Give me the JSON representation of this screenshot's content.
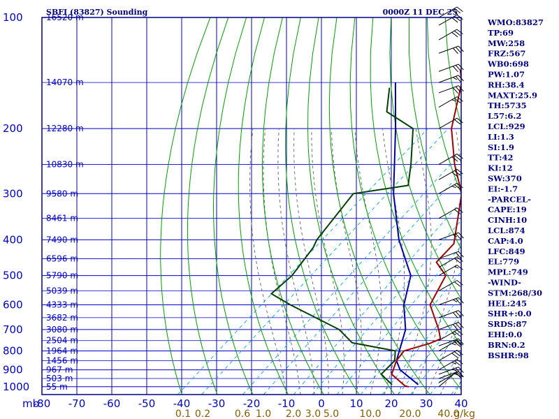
{
  "header": {
    "station_title": "SBFI (83827) Sounding",
    "time_label": "0000Z 11 DEC 25"
  },
  "indices": [
    "WMO:83827",
    "TP:69",
    "MW:258",
    "FRZ:567",
    "WB0:698",
    "PW:1.07",
    "RH:38.4",
    "MAXT:25.9",
    "TH:5735",
    "L57:6.2",
    "LCL:929",
    "LI:1.3",
    "SI:1.9",
    "TT:42",
    "KI:12",
    "SW:370",
    "EI:-1.7",
    "-PARCEL-",
    "CAPE:19",
    "CINH:10",
    "LCL:874",
    "CAP:4.0",
    "LFC:849",
    "EL:779",
    "MPL:749",
    "-WIND-",
    "STM:268/30",
    "HEL:245",
    "SHR+:0.0",
    "SRDS:87",
    "EHI:0.0",
    "BRN:0.2",
    "BSHR:98"
  ],
  "colors": {
    "frame": "#000080",
    "isobar": "#0000c8",
    "dry_adiabat": "#00a000",
    "moist_adiabat": "#606060",
    "mixing_ratio": "#00a0ff",
    "temperature": "#a00000",
    "dewpoint": "#004000",
    "parcel": "#0000a0"
  },
  "chart_data": {
    "type": "skew-t",
    "title": "",
    "xlabel": "",
    "ylabel": "mb",
    "pressure_unit_label": "mb",
    "mixing_unit_label": "g/kg",
    "pressure_ticks": [
      100,
      200,
      300,
      400,
      500,
      600,
      700,
      800,
      900,
      1000
    ],
    "temperature_ticks": [
      -80,
      -70,
      -60,
      -50,
      -40,
      -30,
      -20,
      -10,
      0,
      10,
      20,
      30,
      40
    ],
    "mixing_ratio_ticks": [
      "0.1",
      "0.2",
      "0.6",
      "1.0",
      "2.0",
      "3.0",
      "5.0",
      "10.0",
      "20.0",
      "40.0"
    ],
    "height_labels": [
      {
        "p": 100,
        "label": "16520 m"
      },
      {
        "p": 150,
        "label": "14070 m"
      },
      {
        "p": 200,
        "label": "12280 m"
      },
      {
        "p": 250,
        "label": "10830 m"
      },
      {
        "p": 300,
        "label": "9580 m"
      },
      {
        "p": 350,
        "label": "8461 m"
      },
      {
        "p": 400,
        "label": "7490 m"
      },
      {
        "p": 450,
        "label": "6596 m"
      },
      {
        "p": 500,
        "label": "5790 m"
      },
      {
        "p": 550,
        "label": "5039 m"
      },
      {
        "p": 600,
        "label": "4333 m"
      },
      {
        "p": 650,
        "label": "3682 m"
      },
      {
        "p": 700,
        "label": "3080 m"
      },
      {
        "p": 750,
        "label": "2504 m"
      },
      {
        "p": 800,
        "label": "1964 m"
      },
      {
        "p": 850,
        "label": "1456 m"
      },
      {
        "p": 900,
        "label": "967 m"
      },
      {
        "p": 950,
        "label": "503 m"
      },
      {
        "p": 1000,
        "label": "55 m"
      }
    ],
    "temperature_profile": [
      {
        "p": 1001,
        "t": 22.5
      },
      {
        "p": 994,
        "t": 21.0
      },
      {
        "p": 925,
        "t": 13.5
      },
      {
        "p": 850,
        "t": 10.5
      },
      {
        "p": 800,
        "t": 9.5
      },
      {
        "p": 762,
        "t": 14.5
      },
      {
        "p": 742,
        "t": 16.0
      },
      {
        "p": 700,
        "t": 12.5
      },
      {
        "p": 600,
        "t": 2.0
      },
      {
        "p": 500,
        "t": -3.0
      },
      {
        "p": 460,
        "t": -10.0
      },
      {
        "p": 410,
        "t": -11.0
      },
      {
        "p": 300,
        "t": -25.0
      },
      {
        "p": 250,
        "t": -36.5
      },
      {
        "p": 200,
        "t": -49.0
      },
      {
        "p": 150,
        "t": -61.0
      },
      {
        "p": 140,
        "t": -65.0
      },
      {
        "p": 125,
        "t": -68.5
      },
      {
        "p": 100,
        "t": -68.5
      }
    ],
    "dewpoint_profile": [
      {
        "p": 987,
        "t": 17.0
      },
      {
        "p": 925,
        "t": 10.5
      },
      {
        "p": 850,
        "t": 10.0
      },
      {
        "p": 800,
        "t": 7.0
      },
      {
        "p": 760,
        "t": -8.0
      },
      {
        "p": 700,
        "t": -16.0
      },
      {
        "p": 600,
        "t": -38.0
      },
      {
        "p": 560,
        "t": -47.0
      },
      {
        "p": 500,
        "t": -47.0
      },
      {
        "p": 420,
        "t": -50.0
      },
      {
        "p": 400,
        "t": -51.5
      },
      {
        "p": 300,
        "t": -56.0
      },
      {
        "p": 285,
        "t": -43.0
      },
      {
        "p": 250,
        "t": -49.0
      },
      {
        "p": 200,
        "t": -60.0
      },
      {
        "p": 180,
        "t": -73.0
      },
      {
        "p": 155,
        "t": -80.0
      }
    ],
    "parcel_profile": [
      {
        "p": 987,
        "t": 24.5
      },
      {
        "p": 900,
        "t": 14.5
      },
      {
        "p": 850,
        "t": 10.5
      },
      {
        "p": 700,
        "t": 3.0
      },
      {
        "p": 600,
        "t": -5.5
      },
      {
        "p": 500,
        "t": -13.0
      },
      {
        "p": 400,
        "t": -28.0
      },
      {
        "p": 300,
        "t": -44.5
      },
      {
        "p": 200,
        "t": -65.0
      },
      {
        "p": 150,
        "t": -80.0
      }
    ],
    "wind_barbs": [
      {
        "p": 1000,
        "dir": 50,
        "spd": 10
      },
      {
        "p": 975,
        "dir": 60,
        "spd": 15
      },
      {
        "p": 950,
        "dir": 70,
        "spd": 20
      },
      {
        "p": 925,
        "dir": 70,
        "spd": 25
      },
      {
        "p": 900,
        "dir": 60,
        "spd": 25
      },
      {
        "p": 850,
        "dir": 60,
        "spd": 30
      },
      {
        "p": 800,
        "dir": 60,
        "spd": 25
      },
      {
        "p": 775,
        "dir": 70,
        "spd": 25
      },
      {
        "p": 750,
        "dir": 60,
        "spd": 25
      },
      {
        "p": 700,
        "dir": 70,
        "spd": 30
      },
      {
        "p": 650,
        "dir": 70,
        "spd": 30
      },
      {
        "p": 600,
        "dir": 70,
        "spd": 25
      },
      {
        "p": 550,
        "dir": 60,
        "spd": 20
      },
      {
        "p": 500,
        "dir": 60,
        "spd": 15
      },
      {
        "p": 475,
        "dir": 60,
        "spd": 20
      },
      {
        "p": 450,
        "dir": 70,
        "spd": 20
      },
      {
        "p": 400,
        "dir": 70,
        "spd": 25
      },
      {
        "p": 350,
        "dir": 60,
        "spd": 20
      },
      {
        "p": 300,
        "dir": 60,
        "spd": 25
      },
      {
        "p": 275,
        "dir": 60,
        "spd": 30
      },
      {
        "p": 250,
        "dir": 60,
        "spd": 30
      },
      {
        "p": 200,
        "dir": 60,
        "spd": 20
      },
      {
        "p": 175,
        "dir": 60,
        "spd": 25
      },
      {
        "p": 160,
        "dir": 70,
        "spd": 30
      },
      {
        "p": 150,
        "dir": 70,
        "spd": 25
      },
      {
        "p": 140,
        "dir": 70,
        "spd": 30
      },
      {
        "p": 125,
        "dir": 70,
        "spd": 30
      },
      {
        "p": 115,
        "dir": 60,
        "spd": 30
      },
      {
        "p": 105,
        "dir": 60,
        "spd": 30
      },
      {
        "p": 100,
        "dir": 60,
        "spd": 30
      }
    ]
  }
}
